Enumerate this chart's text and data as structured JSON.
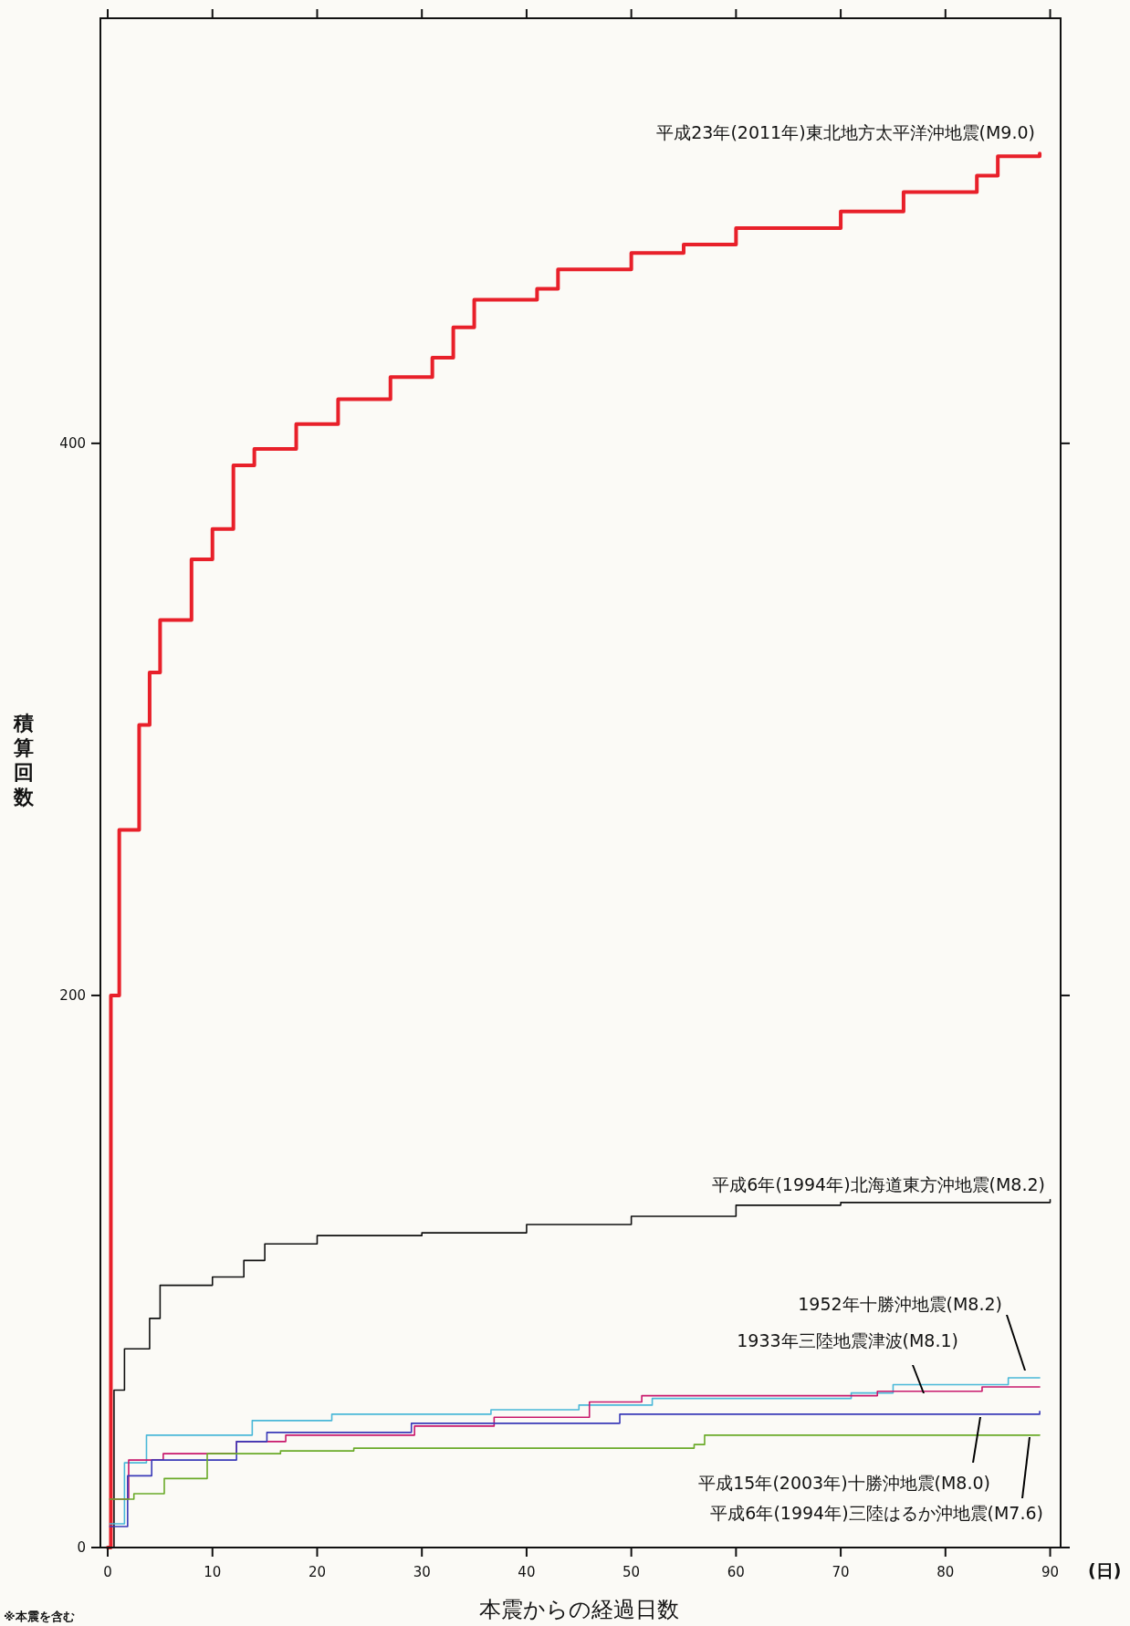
{
  "chart_data": {
    "type": "step",
    "xlabel": "本震からの経過日数",
    "ylabel": "積算回数",
    "xlim": [
      -0.7,
      91
    ],
    "ylim": [
      0,
      554
    ],
    "xticks": [
      0,
      10,
      20,
      30,
      40,
      50,
      60,
      70,
      80,
      90
    ],
    "yticks": [
      0,
      200,
      400
    ],
    "grid": false,
    "line_style": "solid",
    "annotations": [
      "(日)",
      "※本震を含む"
    ],
    "series": [
      {
        "name": "平成23年(2011年)東北地方太平洋沖地震(M9.0)",
        "color": "#e8202a",
        "x": [
          0,
          0.3,
          1.1,
          3,
          4,
          5,
          8,
          10,
          12,
          14,
          18,
          22,
          27,
          31,
          33,
          35,
          41,
          43,
          50,
          55,
          60,
          70,
          76,
          83,
          85,
          89
        ],
        "values": [
          0,
          200,
          260,
          298,
          317,
          336,
          358,
          369,
          392,
          398,
          407,
          416,
          424,
          431,
          442,
          452,
          456,
          463,
          469,
          472,
          478,
          484,
          491,
          497,
          504,
          505
        ]
      },
      {
        "name": "平成6年(1994年)北海道東方沖地震(M8.2)",
        "color": "#111111",
        "x": [
          0,
          0.6,
          1.6,
          4,
          5,
          10,
          13,
          15,
          20,
          30,
          40,
          50,
          60,
          70,
          90
        ],
        "values": [
          0,
          57,
          72,
          83,
          95,
          98,
          104,
          110,
          113,
          114,
          117,
          120,
          124,
          125,
          126
        ]
      },
      {
        "name": "1952年十勝沖地震(M8.2)",
        "color": "#4ab8d8",
        "x": [
          0.2,
          1.6,
          3.7,
          13.8,
          21.4,
          36.6,
          45,
          52,
          71,
          75,
          86,
          89
        ],
        "values": [
          8.6,
          30.7,
          40.7,
          46,
          48.3,
          49.9,
          51.6,
          54,
          56,
          59,
          61.5,
          61.5
        ]
      },
      {
        "name": "1933年三陸地震津波(M8.1)",
        "color": "#c8186c",
        "x": [
          0.2,
          2,
          5.3,
          12.3,
          17,
          29.3,
          36.9,
          46,
          51,
          73.5,
          83.5,
          89
        ],
        "values": [
          17.5,
          31.7,
          34,
          38.4,
          40.7,
          44,
          47.2,
          52.7,
          55,
          56.6,
          58.2,
          58.2
        ]
      },
      {
        "name": "平成15年(2003年)十勝沖地震(M8.0)",
        "color": "#3a3ab8",
        "x": [
          0.2,
          1.9,
          4.2,
          12.3,
          15.2,
          29,
          48.9,
          89
        ],
        "values": [
          7.6,
          26,
          31.7,
          38.4,
          41.7,
          45,
          48.3,
          49.3
        ]
      },
      {
        "name": "平成6年(1994年)三陸はるか沖地震(M7.6)",
        "color": "#6aaa28",
        "x": [
          0.2,
          2.5,
          5.4,
          9.5,
          16.5,
          23.5,
          56,
          57,
          89
        ],
        "values": [
          17.5,
          19.5,
          25,
          34,
          35,
          36,
          37.3,
          40.7,
          40.7
        ]
      }
    ]
  }
}
